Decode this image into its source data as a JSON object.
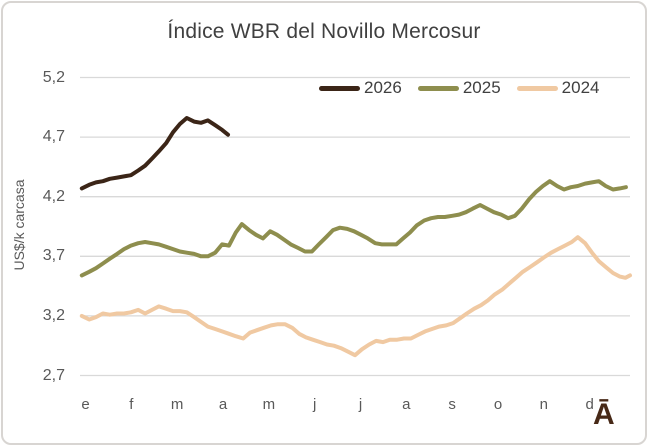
{
  "title": "Índice WBR del Novillo Mercosur",
  "logo_mark": "Ā",
  "colors": {
    "series_2026": "#3b2517",
    "series_2025": "#8e8e4e",
    "series_2024": "#f0c9a2",
    "gridline": "#d9d9d9",
    "title_text": "#404040",
    "axis_text": "#595959",
    "frame_border": "#d8d5d2",
    "logo": "#472917"
  },
  "chart_data": {
    "type": "line",
    "title": "Índice WBR del Novillo Mercosur",
    "xlabel": "",
    "ylabel": "US$/k carcasa",
    "ylim": [
      2.7,
      5.2
    ],
    "ytick_values": [
      5.2,
      4.7,
      4.2,
      3.7,
      3.2,
      2.7
    ],
    "ytick_labels": [
      "5,2",
      "4,7",
      "4,2",
      "3,7",
      "3,2",
      "2,7"
    ],
    "xlim_months": [
      0,
      12
    ],
    "xtick_labels": [
      "e",
      "f",
      "m",
      "a",
      "m",
      "j",
      "j",
      "a",
      "s",
      "o",
      "n",
      "d"
    ],
    "grid": "horizontal-only",
    "legend_position": "top-right",
    "x_unit": "months (0 = start of January, weekly data points)",
    "y_unit": "US$ per kg carcass",
    "series": [
      {
        "name": "2026",
        "color": "#3b2517",
        "points": [
          [
            0.04,
            4.27
          ],
          [
            0.2,
            4.3
          ],
          [
            0.35,
            4.32
          ],
          [
            0.5,
            4.33
          ],
          [
            0.65,
            4.35
          ],
          [
            0.81,
            4.36
          ],
          [
            0.96,
            4.37
          ],
          [
            1.11,
            4.38
          ],
          [
            1.27,
            4.42
          ],
          [
            1.42,
            4.46
          ],
          [
            1.57,
            4.52
          ],
          [
            1.72,
            4.58
          ],
          [
            1.88,
            4.65
          ],
          [
            2.03,
            4.74
          ],
          [
            2.18,
            4.81
          ],
          [
            2.33,
            4.86
          ],
          [
            2.49,
            4.83
          ],
          [
            2.64,
            4.82
          ],
          [
            2.79,
            4.84
          ],
          [
            2.95,
            4.8
          ],
          [
            3.1,
            4.76
          ],
          [
            3.23,
            4.72
          ]
        ]
      },
      {
        "name": "2025",
        "color": "#8e8e4e",
        "points": [
          [
            0.04,
            3.54
          ],
          [
            0.2,
            3.57
          ],
          [
            0.35,
            3.6
          ],
          [
            0.5,
            3.64
          ],
          [
            0.65,
            3.68
          ],
          [
            0.81,
            3.72
          ],
          [
            0.96,
            3.76
          ],
          [
            1.11,
            3.79
          ],
          [
            1.27,
            3.81
          ],
          [
            1.42,
            3.82
          ],
          [
            1.57,
            3.81
          ],
          [
            1.72,
            3.8
          ],
          [
            1.88,
            3.78
          ],
          [
            2.03,
            3.76
          ],
          [
            2.18,
            3.74
          ],
          [
            2.33,
            3.73
          ],
          [
            2.49,
            3.72
          ],
          [
            2.64,
            3.7
          ],
          [
            2.79,
            3.7
          ],
          [
            2.95,
            3.73
          ],
          [
            3.1,
            3.8
          ],
          [
            3.25,
            3.79
          ],
          [
            3.4,
            3.9
          ],
          [
            3.53,
            3.97
          ],
          [
            3.69,
            3.92
          ],
          [
            3.84,
            3.88
          ],
          [
            3.99,
            3.85
          ],
          [
            4.15,
            3.91
          ],
          [
            4.3,
            3.88
          ],
          [
            4.45,
            3.84
          ],
          [
            4.6,
            3.8
          ],
          [
            4.76,
            3.77
          ],
          [
            4.91,
            3.74
          ],
          [
            5.06,
            3.74
          ],
          [
            5.21,
            3.8
          ],
          [
            5.37,
            3.86
          ],
          [
            5.52,
            3.92
          ],
          [
            5.67,
            3.94
          ],
          [
            5.83,
            3.93
          ],
          [
            5.98,
            3.91
          ],
          [
            6.13,
            3.88
          ],
          [
            6.28,
            3.85
          ],
          [
            6.44,
            3.81
          ],
          [
            6.59,
            3.8
          ],
          [
            6.74,
            3.8
          ],
          [
            6.9,
            3.8
          ],
          [
            7.05,
            3.85
          ],
          [
            7.2,
            3.9
          ],
          [
            7.35,
            3.96
          ],
          [
            7.51,
            4.0
          ],
          [
            7.66,
            4.02
          ],
          [
            7.81,
            4.03
          ],
          [
            7.96,
            4.03
          ],
          [
            8.12,
            4.04
          ],
          [
            8.27,
            4.05
          ],
          [
            8.42,
            4.07
          ],
          [
            8.57,
            4.1
          ],
          [
            8.73,
            4.13
          ],
          [
            8.88,
            4.1
          ],
          [
            9.03,
            4.07
          ],
          [
            9.19,
            4.05
          ],
          [
            9.34,
            4.02
          ],
          [
            9.49,
            4.04
          ],
          [
            9.64,
            4.1
          ],
          [
            9.8,
            4.18
          ],
          [
            9.95,
            4.24
          ],
          [
            10.1,
            4.29
          ],
          [
            10.25,
            4.33
          ],
          [
            10.41,
            4.29
          ],
          [
            10.56,
            4.26
          ],
          [
            10.71,
            4.28
          ],
          [
            10.86,
            4.29
          ],
          [
            11.02,
            4.31
          ],
          [
            11.17,
            4.32
          ],
          [
            11.32,
            4.33
          ],
          [
            11.47,
            4.29
          ],
          [
            11.63,
            4.26
          ],
          [
            11.78,
            4.27
          ],
          [
            11.91,
            4.28
          ]
        ]
      },
      {
        "name": "2024",
        "color": "#f0c9a2",
        "points": [
          [
            0.04,
            3.2
          ],
          [
            0.2,
            3.17
          ],
          [
            0.35,
            3.19
          ],
          [
            0.5,
            3.22
          ],
          [
            0.65,
            3.21
          ],
          [
            0.81,
            3.22
          ],
          [
            0.96,
            3.22
          ],
          [
            1.11,
            3.23
          ],
          [
            1.27,
            3.25
          ],
          [
            1.42,
            3.22
          ],
          [
            1.57,
            3.25
          ],
          [
            1.72,
            3.28
          ],
          [
            1.88,
            3.26
          ],
          [
            2.03,
            3.24
          ],
          [
            2.18,
            3.24
          ],
          [
            2.33,
            3.23
          ],
          [
            2.49,
            3.19
          ],
          [
            2.64,
            3.15
          ],
          [
            2.79,
            3.11
          ],
          [
            2.95,
            3.09
          ],
          [
            3.1,
            3.07
          ],
          [
            3.25,
            3.05
          ],
          [
            3.4,
            3.03
          ],
          [
            3.56,
            3.01
          ],
          [
            3.71,
            3.06
          ],
          [
            3.86,
            3.08
          ],
          [
            4.01,
            3.1
          ],
          [
            4.17,
            3.12
          ],
          [
            4.32,
            3.13
          ],
          [
            4.47,
            3.13
          ],
          [
            4.63,
            3.1
          ],
          [
            4.78,
            3.05
          ],
          [
            4.93,
            3.02
          ],
          [
            5.08,
            3.0
          ],
          [
            5.24,
            2.98
          ],
          [
            5.39,
            2.96
          ],
          [
            5.54,
            2.95
          ],
          [
            5.69,
            2.93
          ],
          [
            5.85,
            2.9
          ],
          [
            6.0,
            2.87
          ],
          [
            6.15,
            2.92
          ],
          [
            6.31,
            2.96
          ],
          [
            6.46,
            2.99
          ],
          [
            6.61,
            2.98
          ],
          [
            6.76,
            3.0
          ],
          [
            6.92,
            3.0
          ],
          [
            7.07,
            3.01
          ],
          [
            7.22,
            3.01
          ],
          [
            7.37,
            3.04
          ],
          [
            7.53,
            3.07
          ],
          [
            7.68,
            3.09
          ],
          [
            7.83,
            3.11
          ],
          [
            7.99,
            3.12
          ],
          [
            8.14,
            3.14
          ],
          [
            8.29,
            3.18
          ],
          [
            8.44,
            3.22
          ],
          [
            8.6,
            3.26
          ],
          [
            8.75,
            3.29
          ],
          [
            8.9,
            3.33
          ],
          [
            9.05,
            3.38
          ],
          [
            9.21,
            3.42
          ],
          [
            9.36,
            3.47
          ],
          [
            9.51,
            3.52
          ],
          [
            9.66,
            3.57
          ],
          [
            9.82,
            3.61
          ],
          [
            9.97,
            3.65
          ],
          [
            10.12,
            3.69
          ],
          [
            10.28,
            3.73
          ],
          [
            10.43,
            3.76
          ],
          [
            10.58,
            3.79
          ],
          [
            10.73,
            3.82
          ],
          [
            10.86,
            3.86
          ],
          [
            11.02,
            3.81
          ],
          [
            11.17,
            3.73
          ],
          [
            11.32,
            3.66
          ],
          [
            11.47,
            3.61
          ],
          [
            11.63,
            3.56
          ],
          [
            11.78,
            3.53
          ],
          [
            11.9,
            3.52
          ],
          [
            12.0,
            3.54
          ]
        ]
      }
    ]
  }
}
